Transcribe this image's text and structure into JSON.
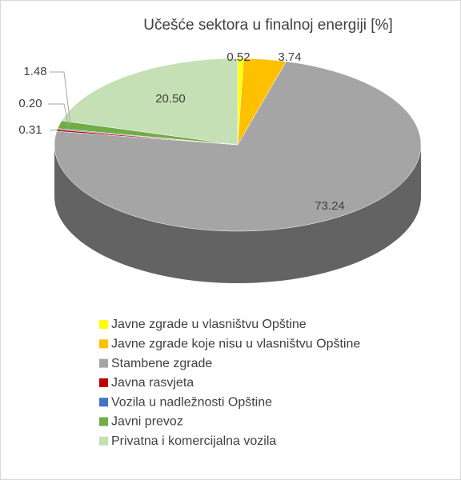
{
  "chart_data": {
    "type": "pie",
    "title": "Učešće sektora u finalnoj energiji [%]",
    "categories": [
      "Javne zgrade u vlasništvu Opštine",
      "Javne zgrade koje nisu u vlasništvu Opštine",
      "Stambene zgrade",
      "Javna rasvjeta",
      "Vozila u nadležnosti Opštine",
      "Javni prevoz",
      "Privatna i komercijalna vozila"
    ],
    "values": [
      0.52,
      3.74,
      73.24,
      0.31,
      0.2,
      1.48,
      20.5
    ],
    "value_labels": [
      "0.52",
      "3.74",
      "73.24",
      "0.31",
      "0.20",
      "1.48",
      "20.50"
    ],
    "colors": [
      "#ffff00",
      "#ffc000",
      "#a5a5a5",
      "#c00000",
      "#4472c4",
      "#70ad47",
      "#c5e0b4"
    ],
    "legend": "bottom"
  }
}
